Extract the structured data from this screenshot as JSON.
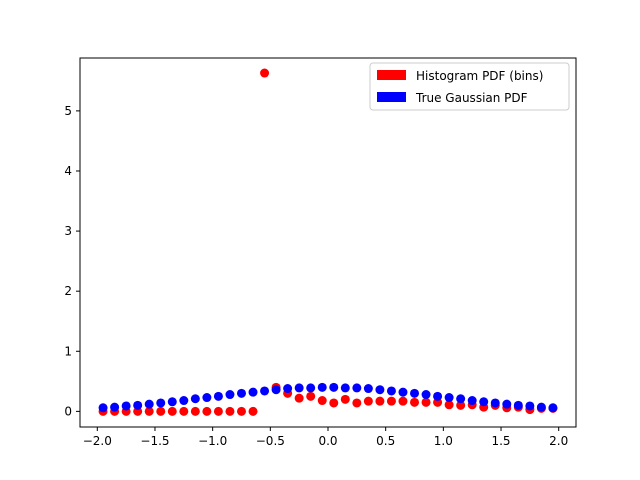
{
  "chart_data": {
    "type": "scatter",
    "title": "",
    "xlabel": "",
    "ylabel": "",
    "xlim": [
      -2.15,
      2.15
    ],
    "ylim": [
      -0.26,
      5.88
    ],
    "xticks": [
      -2.0,
      -1.5,
      -1.0,
      -0.5,
      0.0,
      0.5,
      1.0,
      1.5,
      2.0
    ],
    "xtick_labels": [
      "−2.0",
      "−1.5",
      "−1.0",
      "−0.5",
      "0.0",
      "0.5",
      "1.0",
      "1.5",
      "2.0"
    ],
    "yticks": [
      0,
      1,
      2,
      3,
      4,
      5
    ],
    "ytick_labels": [
      "0",
      "1",
      "2",
      "3",
      "4",
      "5"
    ],
    "grid": false,
    "legend": {
      "placement": "top-right",
      "entries": [
        {
          "label": "Histogram PDF (bins)",
          "color": "#ff0000"
        },
        {
          "label": "True Gaussian PDF",
          "color": "#0000ff"
        }
      ]
    },
    "series": [
      {
        "name": "Histogram PDF (bins)",
        "color": "#ff0000",
        "x": [
          -1.95,
          -1.85,
          -1.75,
          -1.65,
          -1.55,
          -1.45,
          -1.35,
          -1.25,
          -1.15,
          -1.05,
          -0.95,
          -0.85,
          -0.75,
          -0.65,
          -0.55,
          -0.45,
          -0.35,
          -0.25,
          -0.15,
          -0.05,
          0.05,
          0.15,
          0.25,
          0.35,
          0.45,
          0.55,
          0.65,
          0.75,
          0.85,
          0.95,
          1.05,
          1.15,
          1.25,
          1.35,
          1.45,
          1.55,
          1.65,
          1.75,
          1.85,
          1.95
        ],
        "y": [
          0,
          0,
          0,
          0,
          0,
          0,
          0,
          0,
          0,
          0,
          0,
          0,
          0,
          0,
          5.63,
          0.4,
          0.3,
          0.22,
          0.25,
          0.18,
          0.14,
          0.2,
          0.14,
          0.17,
          0.17,
          0.17,
          0.17,
          0.15,
          0.15,
          0.15,
          0.11,
          0.1,
          0.11,
          0.07,
          0.1,
          0.06,
          0.07,
          0.03,
          0.05,
          0.05
        ]
      },
      {
        "name": "True Gaussian PDF",
        "color": "#0000ff",
        "x": [
          -1.95,
          -1.85,
          -1.75,
          -1.65,
          -1.55,
          -1.45,
          -1.35,
          -1.25,
          -1.15,
          -1.05,
          -0.95,
          -0.85,
          -0.75,
          -0.65,
          -0.55,
          -0.45,
          -0.35,
          -0.25,
          -0.15,
          -0.05,
          0.05,
          0.15,
          0.25,
          0.35,
          0.45,
          0.55,
          0.65,
          0.75,
          0.85,
          0.95,
          1.05,
          1.15,
          1.25,
          1.35,
          1.45,
          1.55,
          1.65,
          1.75,
          1.85,
          1.95
        ],
        "y": [
          0.06,
          0.07,
          0.09,
          0.1,
          0.12,
          0.14,
          0.16,
          0.18,
          0.21,
          0.23,
          0.25,
          0.28,
          0.3,
          0.32,
          0.34,
          0.36,
          0.38,
          0.39,
          0.39,
          0.4,
          0.4,
          0.39,
          0.39,
          0.38,
          0.36,
          0.34,
          0.32,
          0.3,
          0.28,
          0.25,
          0.23,
          0.21,
          0.18,
          0.16,
          0.14,
          0.12,
          0.1,
          0.09,
          0.07,
          0.06
        ]
      }
    ]
  }
}
